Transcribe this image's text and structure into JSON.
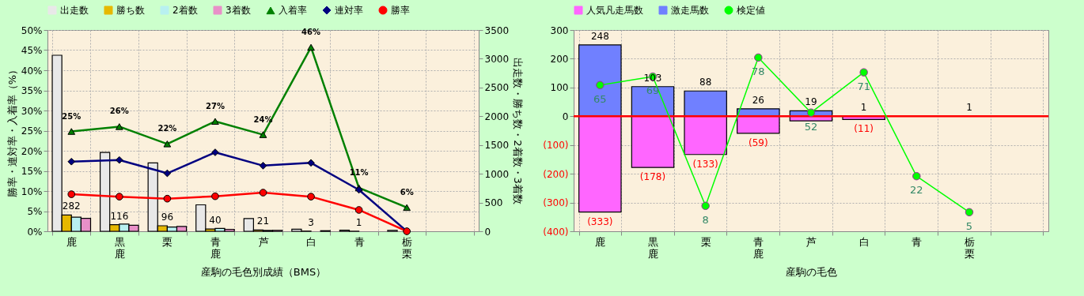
{
  "chart_data": [
    {
      "type": "bar",
      "categories": [
        "鹿",
        "黒鹿",
        "栗",
        "青鹿",
        "芦",
        "白",
        "青",
        "栃栗",
        null
      ],
      "xlabel": "産駒の毛色別成績（BMS）",
      "ylabel": "勝率・連対率・入着率（%）",
      "y2label": "出走数・勝ち数・2着数・3着数",
      "ylim": [
        0,
        50
      ],
      "yticks": [
        {
          "value": 0,
          "label": "0%"
        },
        {
          "value": 5,
          "label": "5%"
        },
        {
          "value": 10,
          "label": "10%"
        },
        {
          "value": 15,
          "label": "15%"
        },
        {
          "value": 20,
          "label": "20%"
        },
        {
          "value": 25,
          "label": "25%"
        },
        {
          "value": 30,
          "label": "30%"
        },
        {
          "value": 35,
          "label": "35%"
        },
        {
          "value": 40,
          "label": "40%"
        },
        {
          "value": 45,
          "label": "45%"
        },
        {
          "value": 50,
          "label": "50%"
        }
      ],
      "y2lim": [
        0,
        3500
      ],
      "y2ticks": [
        0,
        500,
        1000,
        1500,
        2000,
        2500,
        3000,
        3500
      ],
      "grid": true,
      "legend": "top",
      "series": [
        {
          "name": "出走数",
          "color": "#e8e8e8",
          "axis": "y2",
          "values": [
            3061,
            1371,
            1188,
            460,
            220,
            35,
            19,
            17,
            null
          ]
        },
        {
          "name": "勝ち数",
          "color": "#e6b800",
          "axis": "y2",
          "values": [
            282,
            116,
            96,
            40,
            21,
            3,
            1,
            0,
            null
          ],
          "value_labels": [
            "282",
            "116",
            "96",
            "40",
            "21",
            "3",
            "1",
            null,
            null
          ]
        },
        {
          "name": "2着数",
          "color": "#b8f0f0",
          "axis": "y2",
          "values": [
            245,
            126,
            75,
            50,
            15,
            null,
            null,
            0,
            null
          ]
        },
        {
          "name": "3着数",
          "color": "#e890c8",
          "axis": "y2",
          "values": [
            224,
            105,
            85,
            34,
            17,
            10,
            0,
            null,
            null
          ]
        },
        {
          "name": "入着率",
          "type": "line",
          "color": "#008000",
          "marker": "triangle",
          "values": [
            24.8,
            26.0,
            21.7,
            27.3,
            24.0,
            45.7,
            10.8,
            5.9,
            null
          ],
          "value_labels": [
            "25%",
            "26%",
            "22%",
            "27%",
            "24%",
            "46%",
            "11%",
            "6%",
            null
          ]
        },
        {
          "name": "連対率",
          "type": "line",
          "color": "#000080",
          "marker": "diamond",
          "values": [
            17.3,
            17.7,
            14.4,
            19.6,
            16.3,
            17.0,
            10.3,
            0,
            null
          ]
        },
        {
          "name": "勝率",
          "type": "line",
          "color": "#ff0000",
          "marker": "circle",
          "values": [
            9.2,
            8.6,
            8.1,
            8.7,
            9.6,
            8.6,
            5.3,
            0,
            null
          ]
        }
      ]
    },
    {
      "type": "bar",
      "stacked": true,
      "categories": [
        "鹿",
        "黒鹿",
        "栗",
        "青鹿",
        "芦",
        "白",
        "青",
        "栃栗",
        null
      ],
      "xlabel": "産駒の毛色",
      "ylim": [
        -400,
        300
      ],
      "yticks": [
        {
          "value": -400,
          "label": "(400)"
        },
        {
          "value": -300,
          "label": "(300)"
        },
        {
          "value": -200,
          "label": "(200)"
        },
        {
          "value": -100,
          "label": "(100)"
        },
        0,
        100,
        200,
        300
      ],
      "y2lim": [
        -4,
        91
      ],
      "grid": true,
      "legend": "top",
      "ref_lines": [
        {
          "axis": "y",
          "value": 0,
          "color": "#ff0000"
        }
      ],
      "series": [
        {
          "name": "人気凡走馬数",
          "color": "#ff66ff",
          "values": [
            -333,
            -178,
            -133,
            -59,
            -16,
            -11,
            null,
            null,
            null
          ],
          "value_labels": [
            "(333)",
            "(178)",
            "(133)",
            "(59)",
            null,
            "(11)",
            null,
            null,
            null
          ]
        },
        {
          "name": "激走馬数",
          "color": "#7080ff",
          "values": [
            248,
            103,
            88,
            26,
            19,
            1,
            null,
            1,
            null
          ],
          "value_labels": [
            "248",
            "103",
            "88",
            "26",
            "19",
            "1",
            null,
            "1",
            null
          ]
        },
        {
          "name": "検定値",
          "type": "line",
          "color": "#00ff00",
          "marker": "circle",
          "axis": "y2",
          "values": [
            65,
            69,
            8,
            78,
            52,
            71,
            22,
            5,
            null
          ],
          "value_labels": [
            "65",
            "69",
            "8",
            "78",
            "52",
            "71",
            "22",
            "5",
            null
          ]
        }
      ]
    }
  ]
}
